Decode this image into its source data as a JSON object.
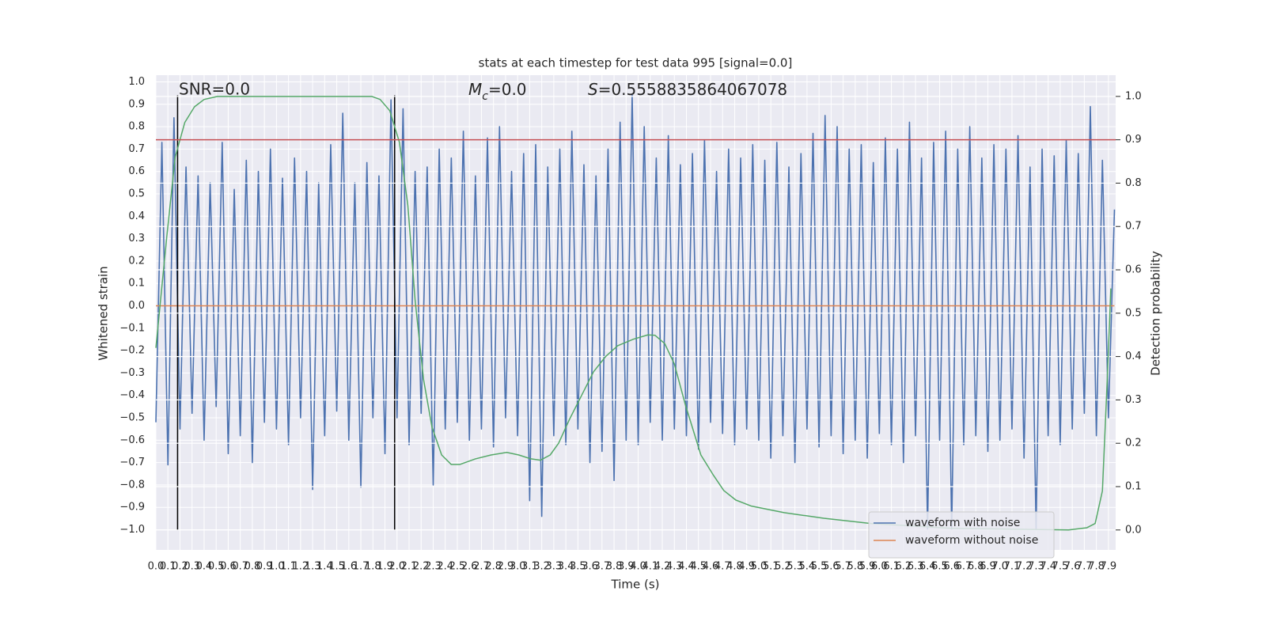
{
  "chart_data": {
    "type": "line",
    "title": "stats at each timestep for test data 995 [signal=0.0]",
    "xlabel": "Time (s)",
    "ylabel": "Whitened strain",
    "y2label": "Detection probability",
    "annotations": {
      "snr": "SNR=0.0",
      "mc_symbol": "M",
      "mc_subscript": "c",
      "mc_text": "=0.0",
      "s_symbol": "S",
      "s_text": "=0.5558835864067078"
    },
    "xlim": [
      0,
      7.96
    ],
    "ylim": [
      -1.09,
      1.03
    ],
    "y2lim": [
      -0.046,
      1.049
    ],
    "grid": true,
    "y2grid": true,
    "background": "#eaeaf2",
    "legend": "lower right",
    "xticks": [
      {
        "value": 0,
        "label": "0.0"
      },
      0.1,
      0.2,
      0.3,
      0.4,
      0.5,
      0.6,
      0.7,
      0.8,
      0.9,
      {
        "value": 1,
        "label": "1.0"
      },
      1.1,
      1.2,
      1.3,
      1.4,
      1.5,
      1.6,
      1.7,
      1.8,
      1.9,
      {
        "value": 2,
        "label": "2.0"
      },
      2.1,
      2.2,
      2.3,
      2.4,
      2.5,
      2.6,
      2.7,
      2.8,
      2.9,
      {
        "value": 3,
        "label": "3.0"
      },
      3.1,
      3.2,
      3.3,
      3.4,
      3.5,
      3.6,
      3.7,
      3.8,
      3.9,
      {
        "value": 4,
        "label": "4.0"
      },
      4.1,
      4.2,
      4.3,
      4.4,
      4.5,
      4.6,
      4.7,
      4.8,
      4.9,
      {
        "value": 5,
        "label": "5.0"
      },
      5.1,
      5.2,
      5.3,
      5.4,
      5.5,
      5.6,
      5.7,
      5.8,
      5.9,
      {
        "value": 6,
        "label": "6.0"
      },
      6.1,
      6.2,
      6.3,
      6.4,
      6.5,
      6.6,
      6.7,
      6.8,
      6.9,
      {
        "value": 7,
        "label": "7.0"
      },
      7.1,
      7.2,
      7.3,
      7.4,
      7.5,
      7.6,
      7.7,
      7.8,
      7.9
    ],
    "yticks": [
      {
        "value": -1.0,
        "label": "−1.0"
      },
      {
        "value": -0.9,
        "label": "−0.9"
      },
      {
        "value": -0.8,
        "label": "−0.8"
      },
      {
        "value": -0.7,
        "label": "−0.7"
      },
      {
        "value": -0.6,
        "label": "−0.6"
      },
      {
        "value": -0.5,
        "label": "−0.5"
      },
      {
        "value": -0.4,
        "label": "−0.4"
      },
      {
        "value": -0.3,
        "label": "−0.3"
      },
      {
        "value": -0.2,
        "label": "−0.2"
      },
      {
        "value": -0.1,
        "label": "−0.1"
      },
      {
        "value": 0,
        "label": "0.0"
      },
      0.1,
      0.2,
      0.3,
      0.4,
      0.5,
      0.6,
      0.7,
      0.8,
      0.9,
      {
        "value": 1,
        "label": "1.0"
      }
    ],
    "y2ticks": [
      {
        "value": 0,
        "label": "0.0"
      },
      0.1,
      0.2,
      0.3,
      0.4,
      0.5,
      0.6,
      0.7,
      0.8,
      0.9,
      {
        "value": 1,
        "label": "1.0"
      }
    ],
    "series": [
      {
        "name": "waveform with noise",
        "color": "#4c72b0",
        "x": [
          0,
          0.05,
          0.1,
          0.15,
          0.2,
          0.25,
          0.3,
          0.35,
          0.4,
          0.45,
          0.5,
          0.55,
          0.6,
          0.65,
          0.7,
          0.75,
          0.8,
          0.85,
          0.9,
          0.95,
          1,
          1.05,
          1.1,
          1.15,
          1.2,
          1.25,
          1.3,
          1.35,
          1.4,
          1.45,
          1.5,
          1.55,
          1.6,
          1.65,
          1.7,
          1.75,
          1.8,
          1.85,
          1.9,
          1.95,
          2,
          2.05,
          2.1,
          2.15,
          2.2,
          2.25,
          2.3,
          2.35,
          2.4,
          2.45,
          2.5,
          2.55,
          2.6,
          2.65,
          2.7,
          2.75,
          2.8,
          2.85,
          2.9,
          2.95,
          3,
          3.05,
          3.1,
          3.15,
          3.2,
          3.25,
          3.3,
          3.35,
          3.4,
          3.45,
          3.5,
          3.55,
          3.6,
          3.65,
          3.7,
          3.75,
          3.8,
          3.85,
          3.9,
          3.95,
          4,
          4.05,
          4.1,
          4.15,
          4.2,
          4.25,
          4.3,
          4.35,
          4.4,
          4.45,
          4.5,
          4.55,
          4.6,
          4.65,
          4.7,
          4.75,
          4.8,
          4.85,
          4.9,
          4.95,
          5,
          5.05,
          5.1,
          5.15,
          5.2,
          5.25,
          5.3,
          5.35,
          5.4,
          5.45,
          5.5,
          5.55,
          5.6,
          5.65,
          5.7,
          5.75,
          5.8,
          5.85,
          5.9,
          5.95,
          6,
          6.05,
          6.1,
          6.15,
          6.2,
          6.25,
          6.3,
          6.35,
          6.4,
          6.45,
          6.5,
          6.55,
          6.6,
          6.65,
          6.7,
          6.75,
          6.8,
          6.85,
          6.9,
          6.95,
          7,
          7.05,
          7.1,
          7.15,
          7.2,
          7.25,
          7.3,
          7.35,
          7.4,
          7.45,
          7.5,
          7.55,
          7.6,
          7.65,
          7.7,
          7.75,
          7.8,
          7.85,
          7.9,
          7.95
        ],
        "values": [
          -0.52,
          0.73,
          -0.71,
          0.84,
          -0.55,
          0.62,
          -0.48,
          0.58,
          -0.6,
          0.55,
          -0.45,
          0.73,
          -0.66,
          0.52,
          -0.58,
          0.65,
          -0.7,
          0.6,
          -0.52,
          0.7,
          -0.55,
          0.57,
          -0.62,
          0.66,
          -0.5,
          0.6,
          -0.82,
          0.55,
          -0.58,
          0.72,
          -0.47,
          0.86,
          -0.6,
          0.55,
          -0.81,
          0.64,
          -0.5,
          0.58,
          -0.66,
          0.92,
          -0.5,
          0.88,
          -0.62,
          0.6,
          -0.48,
          0.62,
          -0.8,
          0.7,
          -0.55,
          0.66,
          -0.52,
          0.78,
          -0.6,
          0.58,
          -0.55,
          0.75,
          -0.63,
          0.8,
          -0.5,
          0.6,
          -0.58,
          0.68,
          -0.87,
          0.72,
          -0.94,
          0.62,
          -0.58,
          0.7,
          -0.62,
          0.78,
          -0.55,
          0.63,
          -0.7,
          0.58,
          -0.65,
          0.7,
          -0.78,
          0.82,
          -0.6,
          0.94,
          -0.62,
          0.8,
          -0.52,
          0.66,
          -0.6,
          0.76,
          -0.55,
          0.63,
          -0.58,
          0.68,
          -0.64,
          0.74,
          -0.52,
          0.6,
          -0.57,
          0.7,
          -0.62,
          0.66,
          -0.55,
          0.72,
          -0.6,
          0.65,
          -0.68,
          0.73,
          -0.58,
          0.62,
          -0.7,
          0.68,
          -0.55,
          0.77,
          -0.63,
          0.85,
          -0.58,
          0.8,
          -0.66,
          0.7,
          -0.6,
          0.72,
          -0.68,
          0.64,
          -0.57,
          0.75,
          -0.62,
          0.7,
          -0.7,
          0.82,
          -0.58,
          0.66,
          -1.0,
          0.73,
          -0.6,
          0.78,
          -1.0,
          0.7,
          -0.62,
          0.8,
          -0.58,
          0.66,
          -0.65,
          0.72,
          -0.6,
          0.7,
          -0.55,
          0.76,
          -0.68,
          0.62,
          -1.0,
          0.7,
          -0.58,
          0.67,
          -0.62,
          0.74,
          -0.55,
          0.68,
          -0.48,
          0.89,
          -0.58,
          0.65,
          -0.5,
          0.43
        ]
      },
      {
        "name": "waveform without noise",
        "color": "#dd8452",
        "x": [
          0,
          7.95
        ],
        "values": [
          0,
          0
        ]
      },
      {
        "color": "#55a868",
        "axis": "y2",
        "x": [
          0,
          0.09,
          0.16,
          0.24,
          0.32,
          0.4,
          0.51,
          1.0,
          1.79,
          1.86,
          1.94,
          2.02,
          2.09,
          2.15,
          2.22,
          2.29,
          2.37,
          2.45,
          2.52,
          2.65,
          2.78,
          2.91,
          3.01,
          3.11,
          3.19,
          3.27,
          3.34,
          3.43,
          3.53,
          3.63,
          3.73,
          3.83,
          3.96,
          4.08,
          4.14,
          4.22,
          4.3,
          4.39,
          4.52,
          4.62,
          4.71,
          4.81,
          4.94,
          5.21,
          5.54,
          5.93,
          6.59,
          7.57,
          7.72,
          7.79,
          7.85,
          7.89,
          7.92
        ],
        "values": [
          0.42,
          0.675,
          0.86,
          0.94,
          0.976,
          0.993,
          1.0,
          1.0,
          1.0,
          0.993,
          0.967,
          0.894,
          0.748,
          0.53,
          0.347,
          0.237,
          0.173,
          0.151,
          0.151,
          0.164,
          0.173,
          0.179,
          0.173,
          0.164,
          0.161,
          0.173,
          0.2,
          0.255,
          0.31,
          0.365,
          0.4,
          0.425,
          0.44,
          0.45,
          0.449,
          0.43,
          0.383,
          0.29,
          0.173,
          0.128,
          0.091,
          0.069,
          0.055,
          0.04,
          0.027,
          0.015,
          0.004,
          0.0,
          0.005,
          0.015,
          0.09,
          0.345,
          0.557
        ]
      }
    ],
    "hlines": {
      "values": [
        0.9
      ],
      "axis": "y2",
      "color": "#c44e52"
    },
    "vlines": {
      "x": [
        0.18,
        1.98
      ],
      "ymin": -1.0,
      "ymax": 0.94,
      "color": "#000000"
    }
  }
}
